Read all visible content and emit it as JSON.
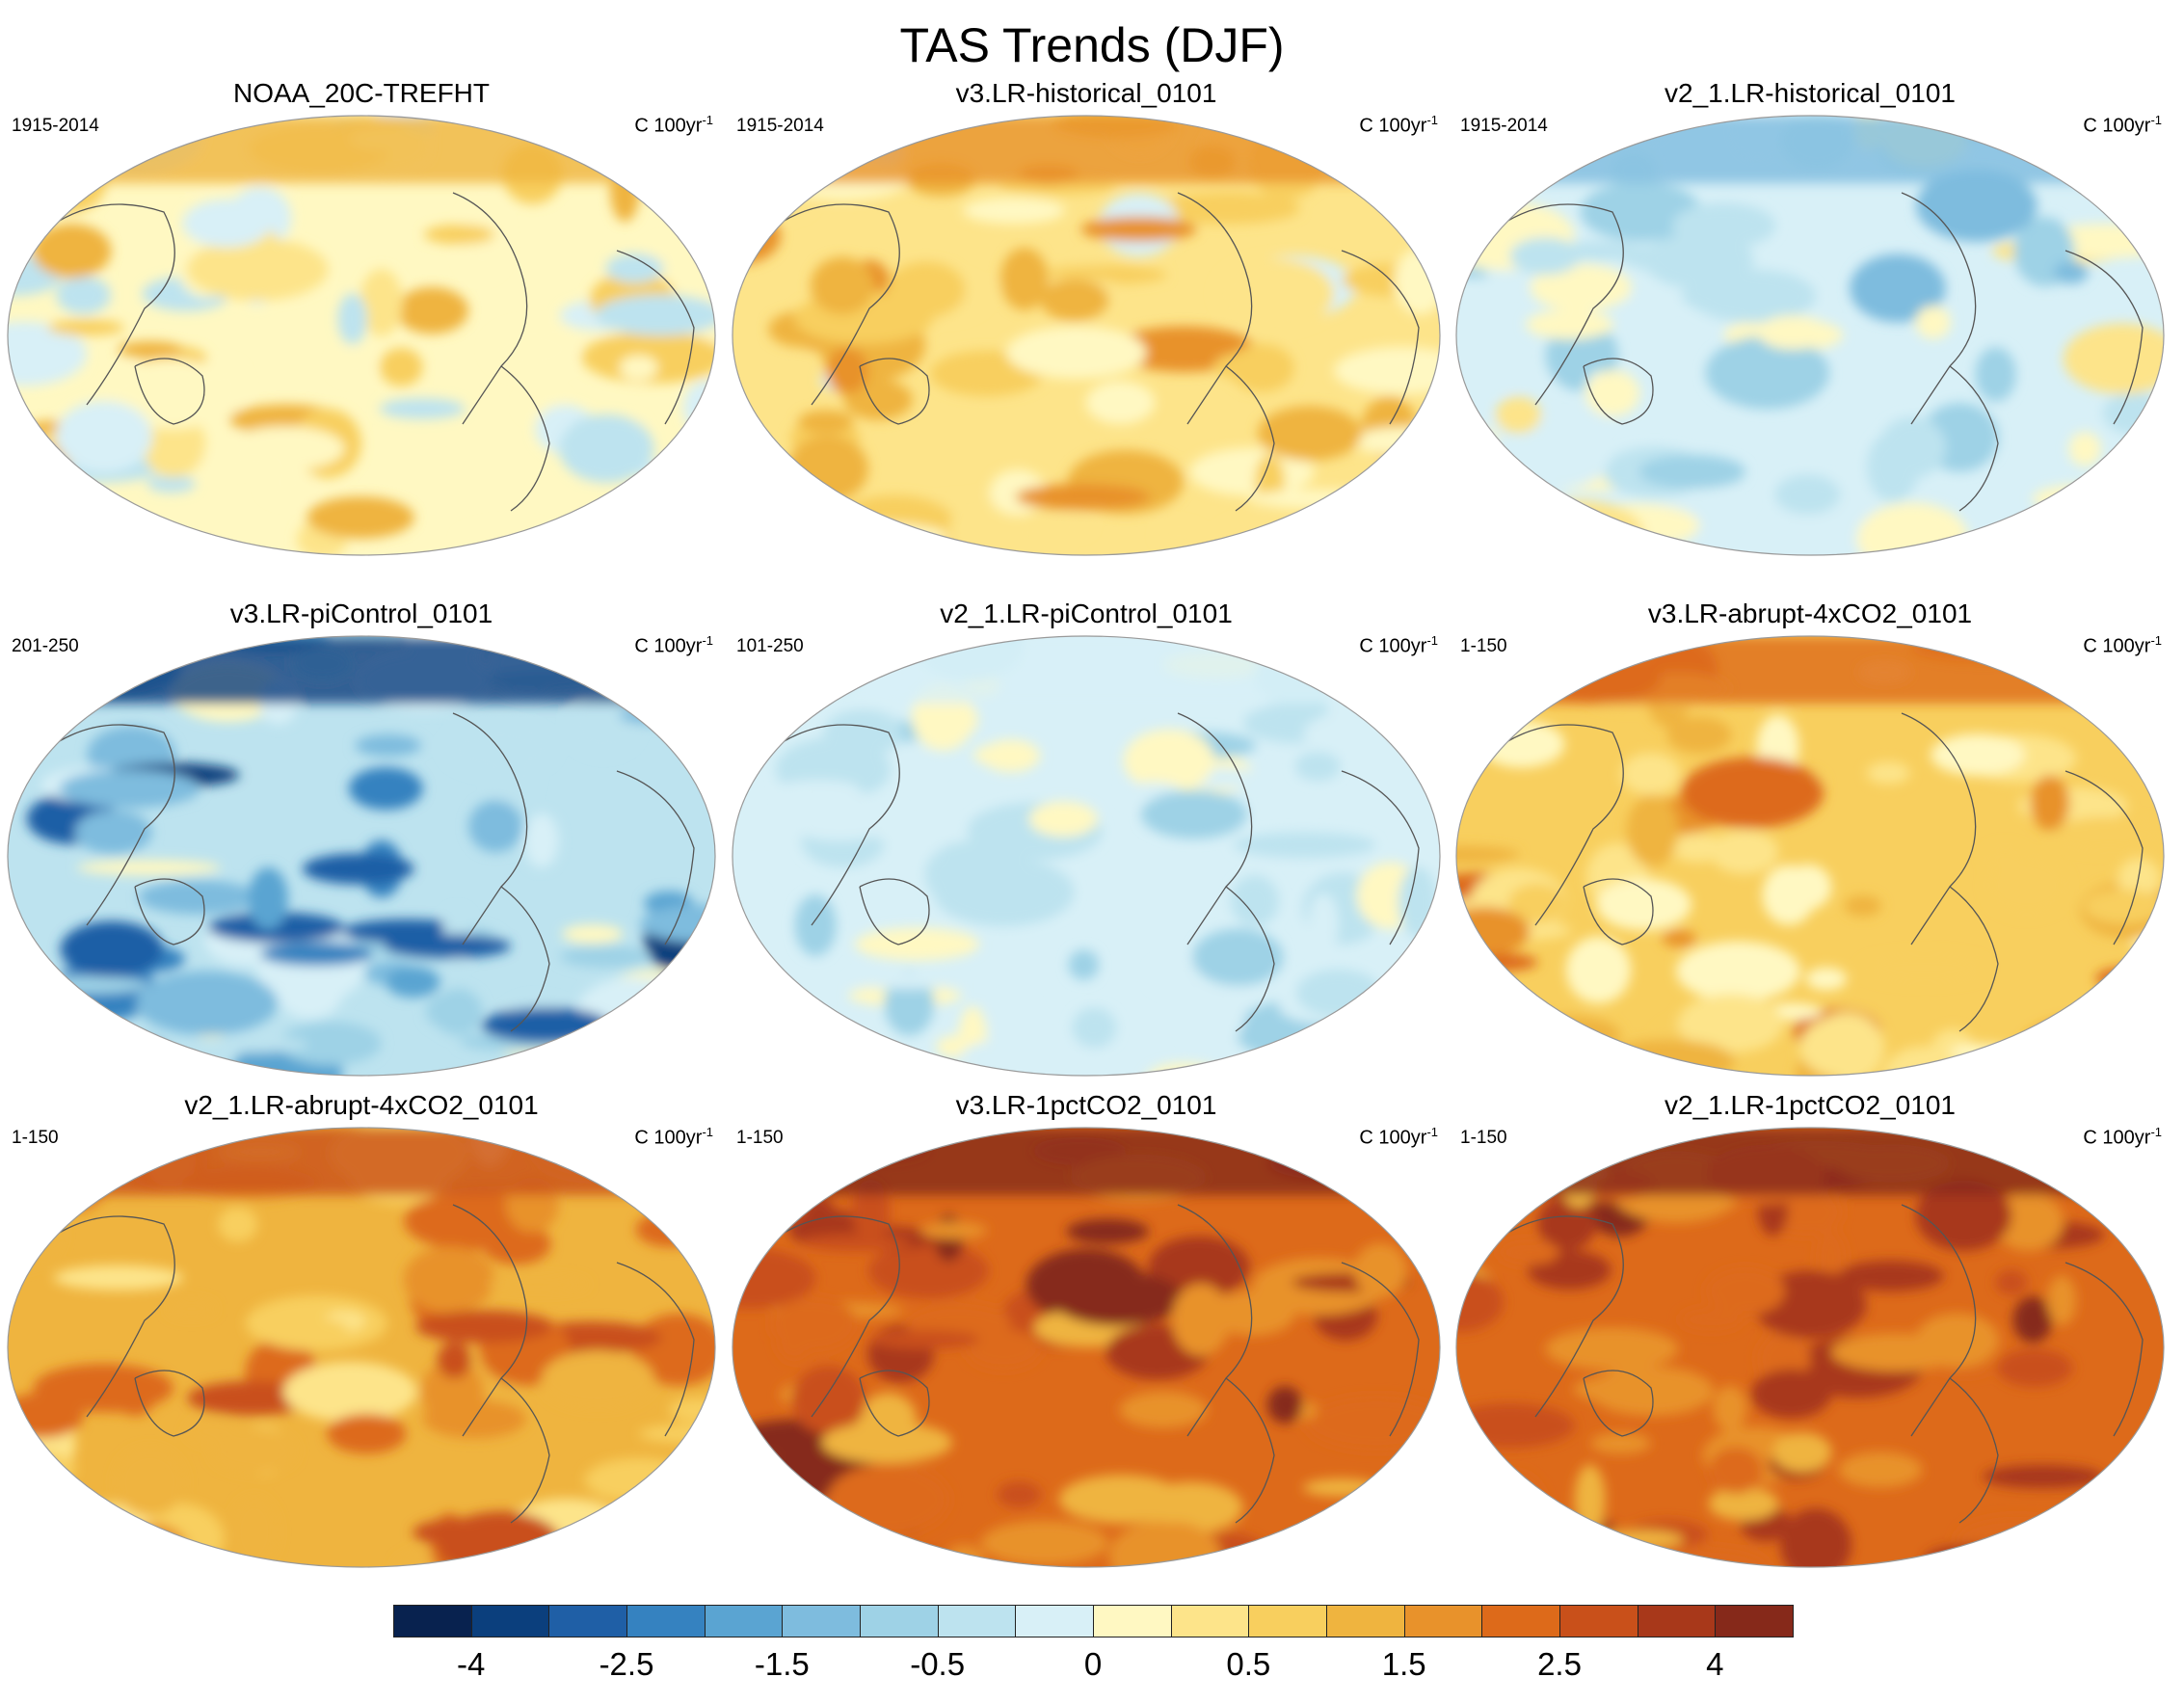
{
  "title": "TAS Trends (DJF)",
  "units_label": "C 100yr",
  "units_exp": "-1",
  "panels": [
    {
      "title": "NOAA_20C-TREFHT",
      "period": "1915-2014",
      "mean_level": 9,
      "palette": "warm-light"
    },
    {
      "title": "v3.LR-historical_0101",
      "period": "1915-2014",
      "mean_level": 10,
      "palette": "warm-light"
    },
    {
      "title": "v2_1.LR-historical_0101",
      "period": "1915-2014",
      "mean_level": 8,
      "palette": "mixed"
    },
    {
      "title": "v3.LR-piControl_0101",
      "period": "201-250",
      "mean_level": 7,
      "palette": "cold"
    },
    {
      "title": "v2_1.LR-piControl_0101",
      "period": "101-250",
      "mean_level": 8,
      "palette": "neutral"
    },
    {
      "title": "v3.LR-abrupt-4xCO2_0101",
      "period": "1-150",
      "mean_level": 11,
      "palette": "warm"
    },
    {
      "title": "v2_1.LR-abrupt-4xCO2_0101",
      "period": "1-150",
      "mean_level": 12,
      "palette": "warm"
    },
    {
      "title": "v3.LR-1pctCO2_0101",
      "period": "1-150",
      "mean_level": 14,
      "palette": "hot"
    },
    {
      "title": "v2_1.LR-1pctCO2_0101",
      "period": "1-150",
      "mean_level": 14,
      "palette": "hot"
    }
  ],
  "colorbar": {
    "colors": [
      "#08224f",
      "#0b3f7d",
      "#1f5fa6",
      "#3582c0",
      "#5aa4d2",
      "#7ebcde",
      "#9ed2e6",
      "#bde3ef",
      "#d8f0f7",
      "#fff8c2",
      "#fde48a",
      "#f8cf5e",
      "#efb43f",
      "#e8922b",
      "#dd6a1a",
      "#c9501a",
      "#a8381a",
      "#86291a"
    ],
    "labels": [
      "-4",
      "-2.5",
      "-1.5",
      "-0.5",
      "0",
      "0.5",
      "1.5",
      "2.5",
      "4"
    ]
  }
}
